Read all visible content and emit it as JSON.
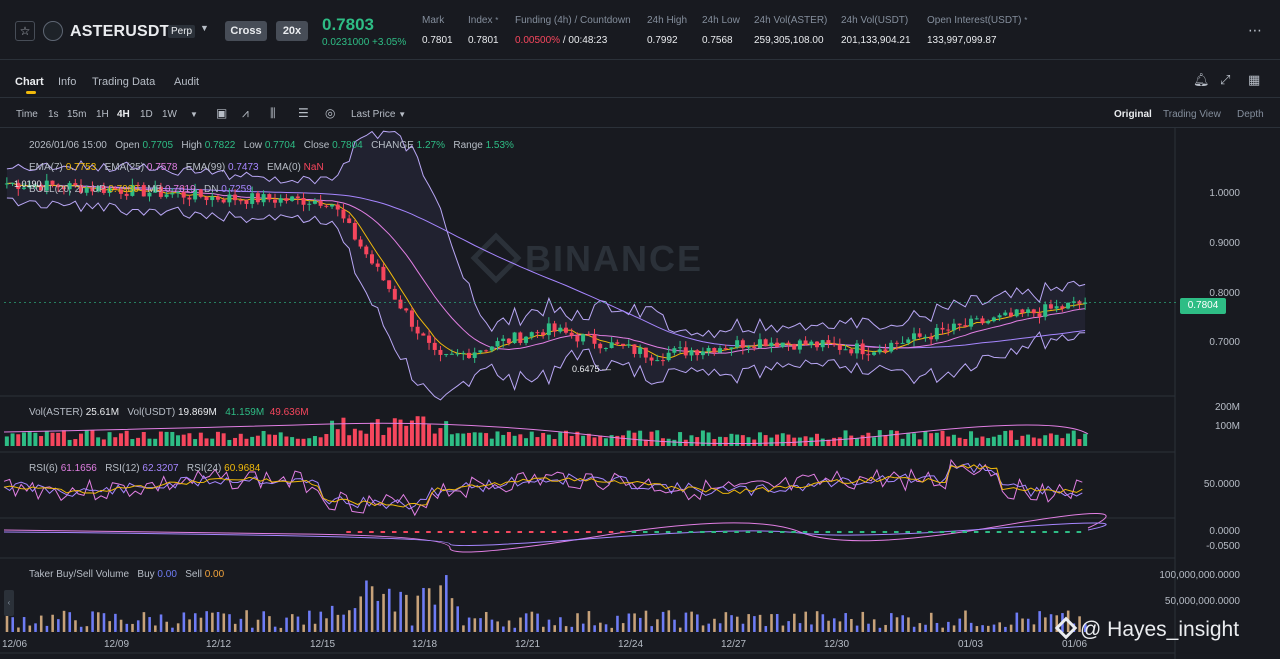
{
  "header": {
    "symbol": "ASTERUSDT",
    "contract_type": "Perp",
    "margin_mode": "Cross",
    "leverage": "20x",
    "last_price": "0.7803",
    "price_change": "0.0231000 +3.05%",
    "stats": [
      {
        "label": "Mark",
        "value": "0.7801"
      },
      {
        "label": "Index",
        "value": "0.7801"
      },
      {
        "label": "Funding (4h) / Countdown",
        "value_rate": "0.00500%",
        "value_time": " / 00:48:23"
      },
      {
        "label": "24h High",
        "value": "0.7992"
      },
      {
        "label": "24h Low",
        "value": "0.7568"
      },
      {
        "label": "24h Vol(ASTER)",
        "value": "259,305,108.00"
      },
      {
        "label": "24h Vol(USDT)",
        "value": "201,133,904.21"
      },
      {
        "label": "Open Interest(USDT)",
        "value": "133,997,099.87"
      }
    ]
  },
  "tabs": [
    "Chart",
    "Info",
    "Trading Data",
    "Audit"
  ],
  "toolbar": {
    "intervals": [
      "Time",
      "1s",
      "15m",
      "1H",
      "4H",
      "1D",
      "1W"
    ],
    "active_interval": "4H",
    "price_type": "Last Price",
    "views": [
      "Original",
      "Trading View",
      "Depth"
    ],
    "active_view": "Original"
  },
  "legend": {
    "ohlc": {
      "date": "2026/01/06 15:00",
      "open_lbl": "Open",
      "open": "0.7705",
      "high_lbl": "High",
      "high": "0.7822",
      "low_lbl": "Low",
      "low": "0.7704",
      "close_lbl": "Close",
      "close": "0.7804",
      "change_lbl": "CHANGE",
      "change": "1.27%",
      "range_lbl": "Range",
      "range": "1.53%"
    },
    "ema": {
      "ema7_lbl": "EMA(7)",
      "ema7": "0.7753",
      "ema25_lbl": "EMA(25)",
      "ema25": "0.7578",
      "ema99_lbl": "EMA(99)",
      "ema99": "0.7473",
      "ema0_lbl": "EMA(0)",
      "ema0": "NaN"
    },
    "boll": {
      "lbl": "BOLL(20, 2)",
      "up_lbl": "UP",
      "up": "0.7980",
      "mb_lbl": "MB",
      "mb": "0.7619",
      "dn_lbl": "DN",
      "dn": "0.7259"
    },
    "vol": {
      "aster_lbl": "Vol(ASTER)",
      "aster": "25.61M",
      "usdt_lbl": "Vol(USDT)",
      "usdt": "19.869M",
      "ma1": "41.159M",
      "ma2": "49.636M"
    },
    "rsi": {
      "r6_lbl": "RSI(6)",
      "r6": "61.1656",
      "r12_lbl": "RSI(12)",
      "r12": "62.3207",
      "r24_lbl": "RSI(24)",
      "r24": "60.9684"
    },
    "taker": {
      "lbl": "Taker Buy/Sell Volume",
      "buy_lbl": "Buy",
      "buy": "0.00",
      "sell_lbl": "Sell",
      "sell": "0.00"
    }
  },
  "price_axis": [
    "1.0000",
    "0.9000",
    "0.8000",
    "0.7000"
  ],
  "current_price_tag": "0.7804",
  "chart_high_label": "1.0190",
  "chart_low_label": "0.6475",
  "volume_axis": [
    "200M",
    "100M"
  ],
  "rsi_axis": [
    "50.0000"
  ],
  "macd_axis": [
    "0.0000",
    "-0.0500"
  ],
  "taker_axis": [
    "100,000,000.0000",
    "50,000,000.0000"
  ],
  "dates": [
    "12/06",
    "12/09",
    "12/12",
    "12/15",
    "12/18",
    "12/21",
    "12/24",
    "12/27",
    "12/30",
    "01/03",
    "01/06"
  ],
  "watermark": "BINANCE",
  "credit": "@ Hayes_insight",
  "colors": {
    "up": "#2ebd85",
    "down": "#f6465d",
    "accent": "#f0b90b",
    "bg": "#181a20"
  },
  "chart_data": {
    "type": "candlestick",
    "interval": "4H",
    "dates": [
      "12/06",
      "12/09",
      "12/12",
      "12/15",
      "12/18",
      "12/21",
      "12/24",
      "12/27",
      "12/30",
      "01/03",
      "01/06"
    ],
    "close_trend": [
      0.985,
      0.975,
      0.96,
      0.955,
      0.68,
      0.735,
      0.69,
      0.715,
      0.7,
      0.745,
      0.78
    ],
    "high": 1.019,
    "low": 0.6475,
    "last": 0.7804,
    "y_range": [
      0.62,
      1.08
    ]
  }
}
